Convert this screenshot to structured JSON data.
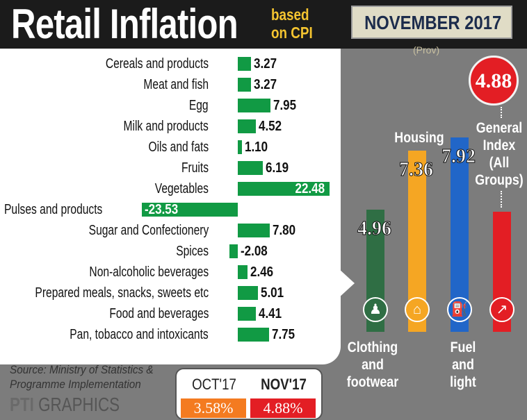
{
  "header": {
    "title": "Retail Inflation",
    "subtitle_line1": "based",
    "subtitle_line2": "on CPI",
    "period": "NOVEMBER 2017",
    "note": "(Prov)"
  },
  "general_index": {
    "value": "4.88",
    "label_lines": [
      "General",
      "Index",
      "(All",
      "Groups)"
    ],
    "color": "#e31e24"
  },
  "chart_data": [
    {
      "type": "bar",
      "orientation": "horizontal",
      "categories": [
        "Cereals and products",
        "Meat and fish",
        "Egg",
        "Milk and products",
        "Oils and fats",
        "Fruits",
        "Vegetables",
        "Pulses and products",
        "Sugar and Confectionery",
        "Spices",
        "Non-alcoholic beverages",
        "Prepared meals, snacks, sweets etc",
        "Food and beverages",
        "Pan, tobacco and intoxicants"
      ],
      "values": [
        3.27,
        3.27,
        7.95,
        4.52,
        1.1,
        6.19,
        22.48,
        -23.53,
        7.8,
        -2.08,
        2.46,
        5.01,
        4.41,
        7.75
      ],
      "value_labels": [
        "3.27",
        "3.27",
        "7.95",
        "4.52",
        "1.10",
        "6.19",
        "22.48",
        "-23.53",
        "7.80",
        "-2.08",
        "2.46",
        "5.01",
        "4.41",
        "7.75"
      ],
      "bar_color": "#119a44"
    },
    {
      "type": "bar",
      "categories": [
        "Clothing and footwear",
        "Housing",
        "Fuel and light",
        "General Index (All Groups)"
      ],
      "values": [
        4.96,
        7.36,
        7.92,
        4.88
      ],
      "value_labels": [
        "4.96",
        "7.36",
        "7.92",
        "4.88"
      ],
      "colors": [
        "#2f6e44",
        "#f5a623",
        "#2166c8",
        "#e31e24"
      ],
      "icons": [
        "shirt-icon",
        "house-icon",
        "fuel-nozzle-icon",
        "trend-chart-icon"
      ]
    }
  ],
  "right_labels": {
    "clothing": [
      "Clothing",
      "and",
      "footwear"
    ],
    "housing": [
      "Housing"
    ],
    "fuel": [
      "Fuel",
      "and",
      "light"
    ]
  },
  "comparison": {
    "prev_label": "OCT'17",
    "prev_value": "3.58%",
    "prev_color": "#f47b20",
    "curr_label": "NOV'17",
    "curr_value": "4.88%",
    "curr_color": "#e31e24"
  },
  "footer": {
    "source_line1": "Source: Ministry of Statistics &",
    "source_line2": "Programme Implementation",
    "logo": "PTI",
    "logo_suffix": "GRAPHICS"
  }
}
